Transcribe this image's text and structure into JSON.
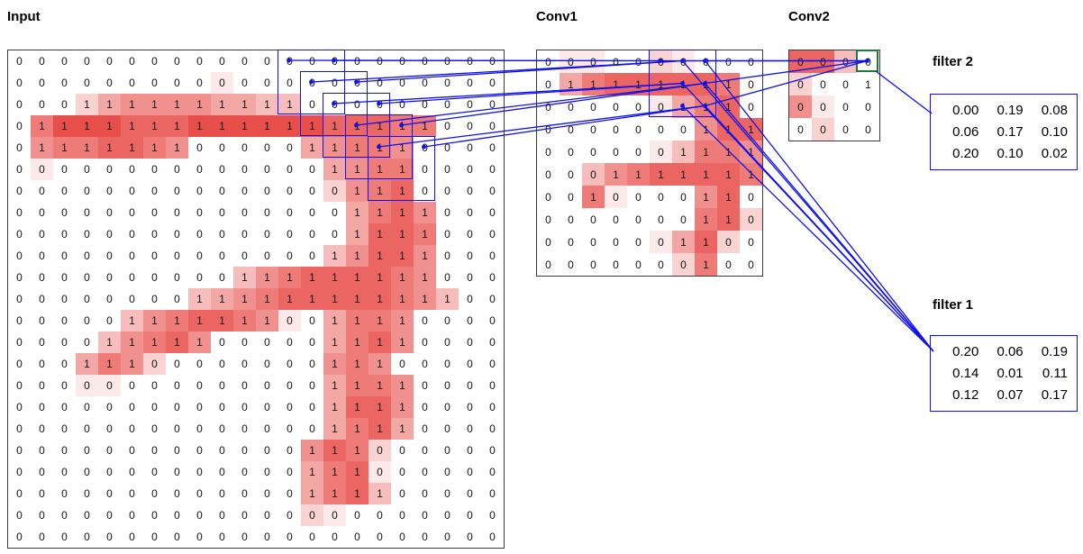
{
  "colors": {
    "accent_blue": "#1010ee",
    "select_green": "#1e7a34",
    "cell_red": "#e53935"
  },
  "panels": {
    "input": {
      "title": "Input",
      "cols": 22,
      "rows": 23,
      "values": [
        "0000000000000000000000",
        "0000000000000000000000",
        "0001111111111000000000",
        "0111111111111111111000",
        "0111111100000111110000",
        "0000000000000011110000",
        "0000000000000001110000",
        "0000000000000001111000",
        "0000000000000001111000",
        "0000000000000011111000",
        "0000000000111111111000",
        "0000000011111111111100",
        "0000011111110011110000",
        "0000111110000011110000",
        "0001110000000011100000",
        "0000000000000011110000",
        "0000000000000011110000",
        "0000000000000011110000",
        "0000000000000111000000",
        "0000000000000111000000",
        "0000000000000111100000",
        "0000000000000000000000",
        "0000000000000000000000"
      ],
      "shades": [
        "0000000000000000000000",
        "0000000001000000000000",
        "0002455554433000000000",
        "0688877788888877766000",
        "0566776500000456650000",
        "0100000000000045660000",
        "0000000000000025670000",
        "0000000000000004675000",
        "0000000000000004776000",
        "0000000000000035775000",
        "0000000000356777765000",
        "0000000034567777765300",
        "0000035677651046650000",
        "0000356750000046750000",
        "0004652000000056500000",
        "0001100000000046650000",
        "0000000000000047750000",
        "0000000000000046740000",
        "0000000000000576200000",
        "0000000000000467100000",
        "0000000000000467300000",
        "0000000000000210000000",
        "0000000000000000000000"
      ]
    },
    "conv1": {
      "title": "Conv1",
      "cols": 10,
      "rows": 10,
      "values": [
        "0000000000",
        "0111111110",
        "0000001110",
        "0000000111",
        "0000001111",
        "0001111111",
        "0010000110",
        "0000000110",
        "0000001100",
        "0000000100"
      ],
      "shades": [
        "0110021000",
        "0467777760",
        "0000014670",
        "0000000577",
        "0000013665",
        "0035677776",
        "0061000570",
        "0000000672",
        "0000014720",
        "0000002600"
      ]
    },
    "conv2": {
      "title": "Conv2",
      "cols": 4,
      "rows": 4,
      "values": [
        "0000",
        "0001",
        "0000",
        "0000"
      ],
      "shades": [
        "7730",
        "2000",
        "5100",
        "0200"
      ],
      "selected_cell": {
        "row": 0,
        "col": 3
      }
    }
  },
  "filters": {
    "filter2": {
      "label": "filter 2",
      "values": [
        [
          "0.00",
          "0.19",
          "0.08"
        ],
        [
          "0.06",
          "0.17",
          "0.10"
        ],
        [
          "0.20",
          "0.10",
          "0.02"
        ]
      ]
    },
    "filter1": {
      "label": "filter 1",
      "values": [
        [
          "0.20",
          "0.06",
          "0.19"
        ],
        [
          "0.14",
          "0.01",
          "0.11"
        ],
        [
          "0.12",
          "0.07",
          "0.17"
        ]
      ]
    }
  }
}
